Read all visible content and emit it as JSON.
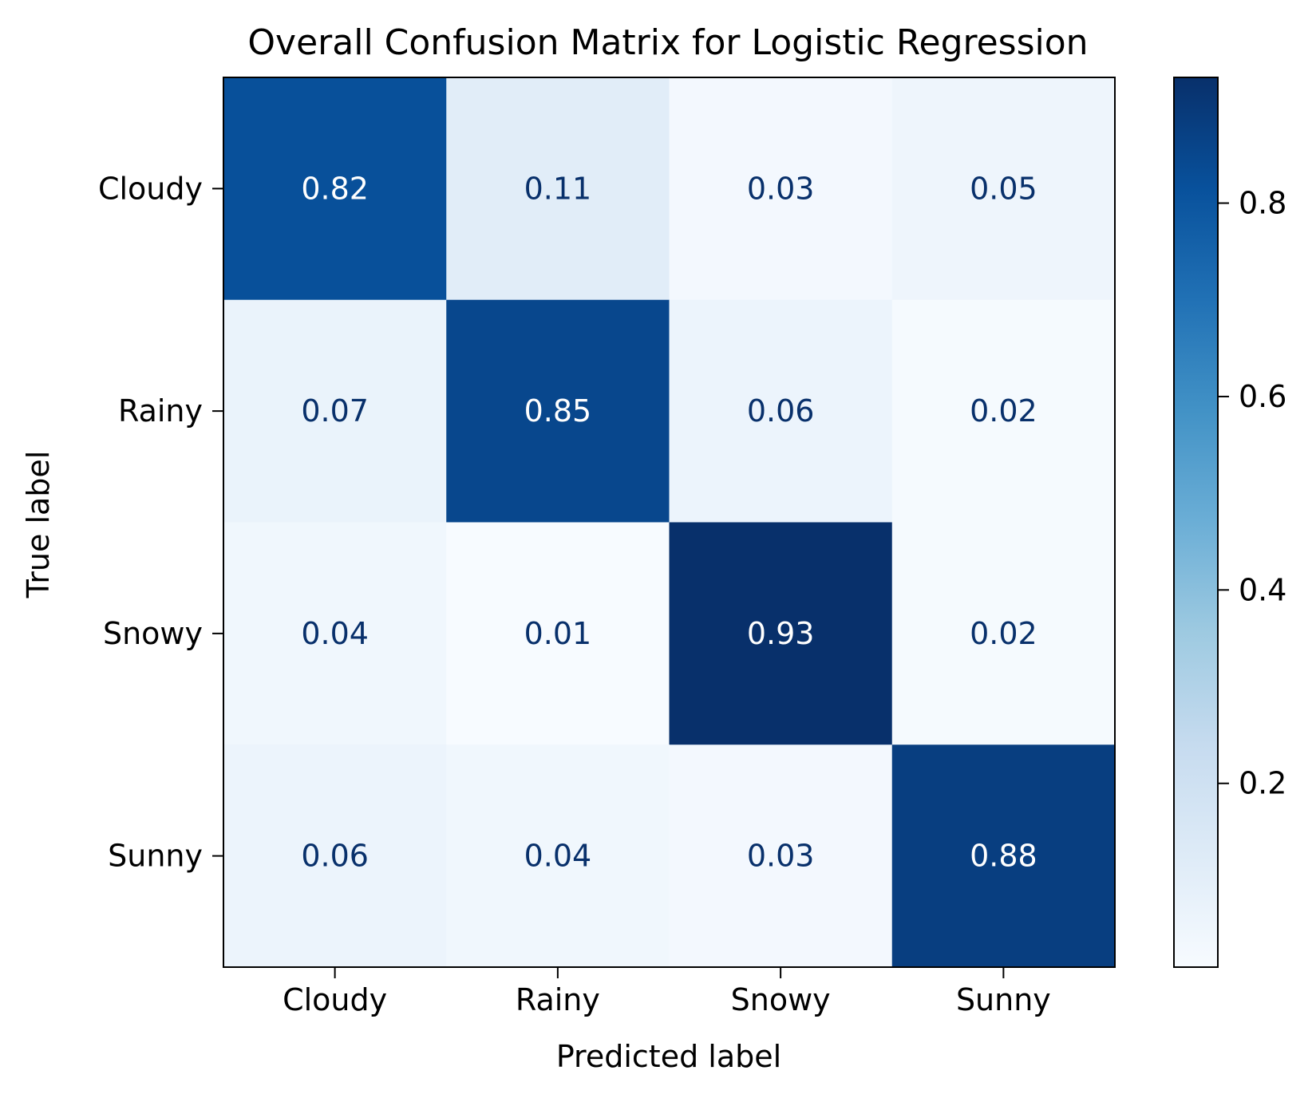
{
  "chart_data": {
    "type": "heatmap",
    "title": "Overall Confusion Matrix for Logistic Regression",
    "xlabel": "Predicted label",
    "ylabel": "True label",
    "x_categories": [
      "Cloudy",
      "Rainy",
      "Snowy",
      "Sunny"
    ],
    "y_categories": [
      "Cloudy",
      "Rainy",
      "Snowy",
      "Sunny"
    ],
    "values": [
      [
        0.82,
        0.11,
        0.03,
        0.05
      ],
      [
        0.07,
        0.85,
        0.06,
        0.02
      ],
      [
        0.04,
        0.01,
        0.93,
        0.02
      ],
      [
        0.06,
        0.04,
        0.03,
        0.88
      ]
    ],
    "value_labels": [
      [
        "0.82",
        "0.11",
        "0.03",
        "0.05"
      ],
      [
        "0.07",
        "0.85",
        "0.06",
        "0.02"
      ],
      [
        "0.04",
        "0.01",
        "0.93",
        "0.02"
      ],
      [
        "0.06",
        "0.04",
        "0.03",
        "0.88"
      ]
    ],
    "colormap": "Blues",
    "colorbar": {
      "range": [
        0.01,
        0.93
      ],
      "ticks": [
        0.2,
        0.4,
        0.6,
        0.8
      ],
      "tick_labels": [
        "0.2",
        "0.4",
        "0.6",
        "0.8"
      ]
    },
    "grid": false,
    "colors": {
      "dark_text": "#08306b",
      "light_text": "#ffffff",
      "axis": "#000000"
    }
  }
}
